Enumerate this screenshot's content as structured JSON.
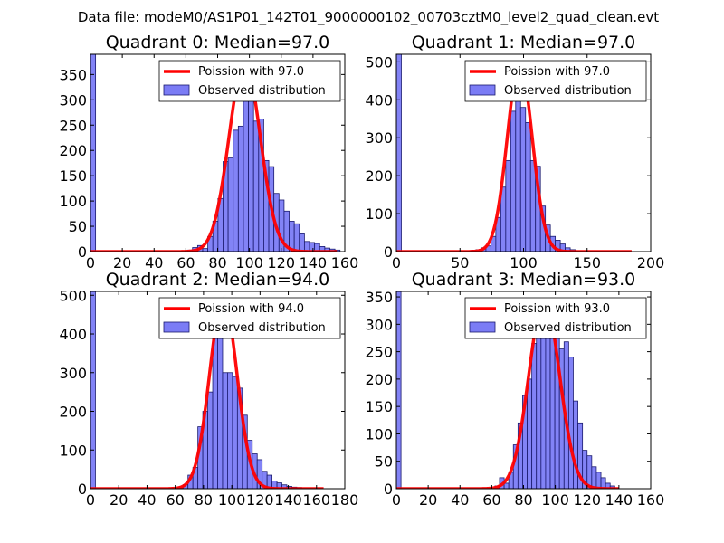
{
  "figure": {
    "title": "Data file: modeM0/AS1P01_142T01_9000000102_00703cztM0_level2_quad_clean.evt"
  },
  "style": {
    "hist_fill": "#7b7cf5",
    "hist_edge": "#1a1a6e",
    "poisson_color": "#ff0000"
  },
  "chart_data": [
    {
      "type": "bar",
      "title": "Quadrant 0: Median=97.0",
      "median": 97.0,
      "xlim": [
        0,
        160
      ],
      "ylim": [
        0,
        390
      ],
      "xticks": [
        0,
        20,
        40,
        60,
        80,
        100,
        120,
        140,
        160
      ],
      "xtick_labels": [
        "0",
        "20",
        "40",
        "60",
        "80",
        "100",
        "120",
        "140",
        "160"
      ],
      "yticks": [
        0,
        50,
        100,
        150,
        200,
        250,
        300,
        350
      ],
      "ytick_labels": [
        "0",
        "50",
        "100",
        "150",
        "200",
        "250",
        "300",
        "350"
      ],
      "legend": [
        "Poission with 97.0",
        "Observed distribution"
      ],
      "legend_position": "top-right",
      "bin_width": 3.2,
      "bins": [
        {
          "x": 0,
          "y": 390
        },
        {
          "x": 61,
          "y": 3
        },
        {
          "x": 64.2,
          "y": 8
        },
        {
          "x": 67.4,
          "y": 12
        },
        {
          "x": 70.6,
          "y": 6
        },
        {
          "x": 73.8,
          "y": 30
        },
        {
          "x": 77,
          "y": 60
        },
        {
          "x": 80.2,
          "y": 105
        },
        {
          "x": 83.4,
          "y": 178
        },
        {
          "x": 86.6,
          "y": 185
        },
        {
          "x": 89.8,
          "y": 240
        },
        {
          "x": 93,
          "y": 248
        },
        {
          "x": 96.2,
          "y": 300
        },
        {
          "x": 99.4,
          "y": 325
        },
        {
          "x": 102.6,
          "y": 258
        },
        {
          "x": 105.8,
          "y": 262
        },
        {
          "x": 109,
          "y": 180
        },
        {
          "x": 112.2,
          "y": 168
        },
        {
          "x": 115.4,
          "y": 115
        },
        {
          "x": 118.6,
          "y": 102
        },
        {
          "x": 121.8,
          "y": 80
        },
        {
          "x": 125,
          "y": 60
        },
        {
          "x": 128.2,
          "y": 55
        },
        {
          "x": 131.4,
          "y": 35
        },
        {
          "x": 134.6,
          "y": 20
        },
        {
          "x": 137.8,
          "y": 18
        },
        {
          "x": 141,
          "y": 16
        },
        {
          "x": 144.2,
          "y": 10
        },
        {
          "x": 147.4,
          "y": 7
        },
        {
          "x": 150.6,
          "y": 5
        },
        {
          "x": 153.8,
          "y": 3
        }
      ],
      "poisson": {
        "lambda": 97.0,
        "peak": 374,
        "x_range": [
          0,
          155
        ]
      }
    },
    {
      "type": "bar",
      "title": "Quadrant 1: Median=97.0",
      "median": 97.0,
      "xlim": [
        0,
        200
      ],
      "ylim": [
        0,
        520
      ],
      "xticks": [
        0,
        50,
        100,
        150,
        200
      ],
      "xtick_labels": [
        "0",
        "50",
        "100",
        "150",
        "200"
      ],
      "yticks": [
        0,
        100,
        200,
        300,
        400,
        500
      ],
      "ytick_labels": [
        "0",
        "100",
        "200",
        "300",
        "400",
        "500"
      ],
      "legend": [
        "Poission with 97.0",
        "Observed distribution"
      ],
      "legend_position": "top-right",
      "bin_width": 3.9,
      "bins": [
        {
          "x": 0,
          "y": 520
        },
        {
          "x": 58.7,
          "y": 3
        },
        {
          "x": 62.6,
          "y": 5
        },
        {
          "x": 66.5,
          "y": 10
        },
        {
          "x": 70.4,
          "y": 15
        },
        {
          "x": 74.3,
          "y": 40
        },
        {
          "x": 78.2,
          "y": 90
        },
        {
          "x": 82.1,
          "y": 170
        },
        {
          "x": 86,
          "y": 240
        },
        {
          "x": 89.9,
          "y": 370
        },
        {
          "x": 93.8,
          "y": 430
        },
        {
          "x": 97.7,
          "y": 380
        },
        {
          "x": 101.6,
          "y": 340
        },
        {
          "x": 105.5,
          "y": 240
        },
        {
          "x": 109.4,
          "y": 225
        },
        {
          "x": 113.3,
          "y": 120
        },
        {
          "x": 117.2,
          "y": 70
        },
        {
          "x": 121.1,
          "y": 40
        },
        {
          "x": 125,
          "y": 30
        },
        {
          "x": 128.9,
          "y": 20
        },
        {
          "x": 132.8,
          "y": 10
        },
        {
          "x": 136.7,
          "y": 5
        }
      ],
      "poisson": {
        "lambda": 97.0,
        "peak": 495,
        "x_range": [
          0,
          185
        ]
      }
    },
    {
      "type": "bar",
      "title": "Quadrant 2: Median=94.0",
      "median": 94.0,
      "xlim": [
        0,
        180
      ],
      "ylim": [
        0,
        510
      ],
      "xticks": [
        0,
        20,
        40,
        60,
        80,
        100,
        120,
        140,
        160,
        180
      ],
      "xtick_labels": [
        "0",
        "20",
        "40",
        "60",
        "80",
        "100",
        "120",
        "140",
        "160",
        "180"
      ],
      "yticks": [
        0,
        100,
        200,
        300,
        400,
        500
      ],
      "ytick_labels": [
        "0",
        "100",
        "200",
        "300",
        "400",
        "500"
      ],
      "legend": [
        "Poission with 94.0",
        "Observed distribution"
      ],
      "legend_position": "top-right",
      "bin_width": 3.5,
      "bins": [
        {
          "x": 0,
          "y": 510
        },
        {
          "x": 62,
          "y": 5
        },
        {
          "x": 65.5,
          "y": 10
        },
        {
          "x": 69,
          "y": 35
        },
        {
          "x": 72.5,
          "y": 55
        },
        {
          "x": 76,
          "y": 160
        },
        {
          "x": 79.5,
          "y": 200
        },
        {
          "x": 83,
          "y": 250
        },
        {
          "x": 86.5,
          "y": 390
        },
        {
          "x": 90,
          "y": 440
        },
        {
          "x": 93.5,
          "y": 300
        },
        {
          "x": 97,
          "y": 300
        },
        {
          "x": 100.5,
          "y": 290
        },
        {
          "x": 104,
          "y": 260
        },
        {
          "x": 107.5,
          "y": 190
        },
        {
          "x": 111,
          "y": 125
        },
        {
          "x": 114.5,
          "y": 90
        },
        {
          "x": 118,
          "y": 75
        },
        {
          "x": 121.5,
          "y": 45
        },
        {
          "x": 125,
          "y": 35
        },
        {
          "x": 128.5,
          "y": 20
        },
        {
          "x": 132,
          "y": 15
        },
        {
          "x": 135.5,
          "y": 10
        },
        {
          "x": 139,
          "y": 6
        },
        {
          "x": 142.5,
          "y": 4
        },
        {
          "x": 146,
          "y": 3
        }
      ],
      "poisson": {
        "lambda": 94.0,
        "peak": 490,
        "x_range": [
          0,
          165
        ]
      }
    },
    {
      "type": "bar",
      "title": "Quadrant 3: Median=93.0",
      "median": 93.0,
      "xlim": [
        0,
        160
      ],
      "ylim": [
        0,
        360
      ],
      "xticks": [
        0,
        20,
        40,
        60,
        80,
        100,
        120,
        140,
        160
      ],
      "xtick_labels": [
        "0",
        "20",
        "40",
        "60",
        "80",
        "100",
        "120",
        "140",
        "160"
      ],
      "yticks": [
        0,
        50,
        100,
        150,
        200,
        250,
        300,
        350
      ],
      "ytick_labels": [
        "0",
        "50",
        "100",
        "150",
        "200",
        "250",
        "300",
        "350"
      ],
      "legend": [
        "Poission with 93.0",
        "Observed distribution"
      ],
      "legend_position": "top-right",
      "bin_width": 2.9,
      "bins": [
        {
          "x": 0,
          "y": 360
        },
        {
          "x": 62,
          "y": 5
        },
        {
          "x": 64.9,
          "y": 20
        },
        {
          "x": 67.8,
          "y": 10
        },
        {
          "x": 70.7,
          "y": 30
        },
        {
          "x": 73.6,
          "y": 80
        },
        {
          "x": 76.5,
          "y": 120
        },
        {
          "x": 79.4,
          "y": 170
        },
        {
          "x": 82.3,
          "y": 200
        },
        {
          "x": 85.2,
          "y": 265
        },
        {
          "x": 88.1,
          "y": 310
        },
        {
          "x": 91,
          "y": 288
        },
        {
          "x": 93.9,
          "y": 320
        },
        {
          "x": 96.8,
          "y": 300
        },
        {
          "x": 99.7,
          "y": 275
        },
        {
          "x": 102.6,
          "y": 255
        },
        {
          "x": 105.5,
          "y": 268
        },
        {
          "x": 108.4,
          "y": 240
        },
        {
          "x": 111.3,
          "y": 160
        },
        {
          "x": 114.2,
          "y": 120
        },
        {
          "x": 117.1,
          "y": 70
        },
        {
          "x": 120,
          "y": 60
        },
        {
          "x": 122.9,
          "y": 40
        },
        {
          "x": 125.8,
          "y": 30
        },
        {
          "x": 128.7,
          "y": 20
        },
        {
          "x": 131.6,
          "y": 10
        },
        {
          "x": 134.5,
          "y": 5
        }
      ],
      "poisson": {
        "lambda": 93.0,
        "peak": 345,
        "x_range": [
          0,
          140
        ]
      }
    }
  ]
}
